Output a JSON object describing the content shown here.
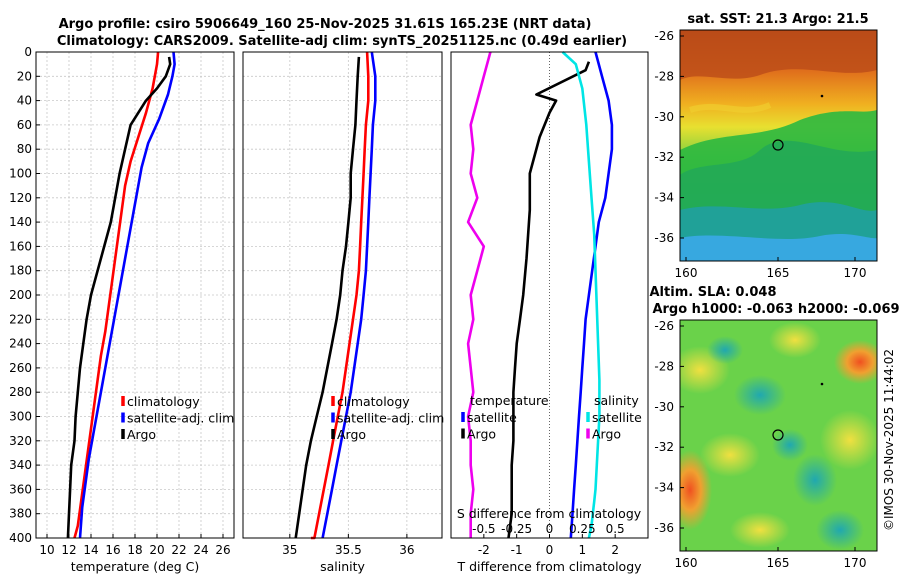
{
  "title_line1": "Argo profile: csiro 5906649_160 25-Nov-2025 31.61S 165.23E (NRT data)",
  "title_line2": "Climatology: CARS2009. Satellite-adj clim: synTS_20251125.nc (0.49d earlier)",
  "copyright": "©IMOS 30-Nov-2025 11:44:02",
  "chart_data": [
    {
      "type": "line",
      "name": "temperature",
      "xlabel": "temperature (deg C)",
      "xlim": [
        9,
        27
      ],
      "xticks": [
        "10",
        "12",
        "14",
        "16",
        "18",
        "20",
        "22",
        "24",
        "26"
      ],
      "ylim": [
        400,
        0
      ],
      "yticks": [
        "0",
        "20",
        "40",
        "60",
        "80",
        "100",
        "120",
        "140",
        "160",
        "180",
        "200",
        "220",
        "240",
        "260",
        "280",
        "300",
        "320",
        "340",
        "360",
        "380",
        "400"
      ],
      "grid": true,
      "legend": [
        "climatology",
        "satellite-adj. clim",
        "Argo"
      ],
      "legend_position": "lower-right",
      "series": [
        {
          "name": "climatology",
          "color": "#ff0000",
          "x": [
            20.1,
            20.0,
            19.6,
            19.0,
            18.3,
            17.6,
            17.1,
            16.8,
            16.5,
            16.2,
            15.9,
            15.6,
            15.3,
            14.9,
            14.6,
            14.3,
            14.0,
            13.7,
            13.4,
            13.1,
            12.8,
            12.5
          ],
          "y": [
            0,
            10,
            30,
            50,
            70,
            90,
            110,
            130,
            150,
            170,
            190,
            210,
            230,
            250,
            270,
            290,
            310,
            330,
            350,
            370,
            390,
            400
          ]
        },
        {
          "name": "satellite-adj. clim",
          "color": "#0000ff",
          "x": [
            21.5,
            21.6,
            21.4,
            21.0,
            20.2,
            19.2,
            18.6,
            18.2,
            17.8,
            17.4,
            17.0,
            16.6,
            16.2,
            15.8,
            15.4,
            15.0,
            14.6,
            14.2,
            13.8,
            13.5,
            13.2,
            13.0
          ],
          "y": [
            0,
            10,
            20,
            35,
            55,
            75,
            95,
            115,
            135,
            155,
            175,
            195,
            215,
            235,
            255,
            275,
            295,
            315,
            335,
            355,
            375,
            400
          ]
        },
        {
          "name": "Argo",
          "color": "#000000",
          "x": [
            21.1,
            21.2,
            20.8,
            20.0,
            19.0,
            17.6,
            17.1,
            16.6,
            16.2,
            15.8,
            15.2,
            14.6,
            14.0,
            13.6,
            13.3,
            13.0,
            12.8,
            12.6,
            12.5,
            12.2,
            12.1,
            12.0,
            11.9
          ],
          "y": [
            4,
            10,
            20,
            30,
            40,
            60,
            80,
            100,
            120,
            140,
            160,
            180,
            200,
            220,
            240,
            260,
            280,
            300,
            320,
            340,
            360,
            380,
            400
          ]
        }
      ]
    },
    {
      "type": "line",
      "name": "salinity",
      "xlabel": "salinity",
      "xlim": [
        34.6,
        36.3
      ],
      "xticks": [
        "35",
        "35.5",
        "36"
      ],
      "ylim": [
        400,
        0
      ],
      "grid": true,
      "legend": [
        "climatology",
        "satellite-adj. clim",
        "Argo"
      ],
      "legend_position": "lower-right",
      "series": [
        {
          "name": "climatology",
          "color": "#ff0000",
          "x": [
            35.66,
            35.67,
            35.67,
            35.65,
            35.64,
            35.63,
            35.62,
            35.61,
            35.6,
            35.59,
            35.57,
            35.54,
            35.51,
            35.48,
            35.45,
            35.41,
            35.37,
            35.33,
            35.29,
            35.25,
            35.21,
            35.18
          ],
          "y": [
            0,
            20,
            40,
            60,
            80,
            100,
            120,
            140,
            160,
            180,
            200,
            220,
            240,
            260,
            280,
            300,
            320,
            340,
            360,
            380,
            400,
            400
          ]
        },
        {
          "name": "satellite-adj. clim",
          "color": "#0000ff",
          "x": [
            35.7,
            35.73,
            35.73,
            35.71,
            35.7,
            35.69,
            35.68,
            35.67,
            35.66,
            35.65,
            35.63,
            35.61,
            35.58,
            35.55,
            35.52,
            35.48,
            35.44,
            35.4,
            35.36,
            35.32,
            35.28
          ],
          "y": [
            0,
            20,
            40,
            60,
            80,
            100,
            120,
            140,
            160,
            180,
            200,
            220,
            240,
            260,
            280,
            300,
            320,
            340,
            360,
            380,
            400
          ]
        },
        {
          "name": "Argo",
          "color": "#000000",
          "x": [
            35.59,
            35.58,
            35.57,
            35.56,
            35.54,
            35.52,
            35.52,
            35.5,
            35.48,
            35.45,
            35.43,
            35.4,
            35.36,
            35.32,
            35.28,
            35.23,
            35.18,
            35.14,
            35.11,
            35.08,
            35.05
          ],
          "y": [
            4,
            20,
            40,
            60,
            80,
            100,
            120,
            140,
            160,
            180,
            200,
            220,
            240,
            260,
            280,
            300,
            320,
            340,
            360,
            380,
            400
          ]
        }
      ]
    },
    {
      "type": "line",
      "name": "difference from climatology",
      "xlabel": "T difference from climatology",
      "xlabel2": "S difference from climatology",
      "xlim": [
        -3,
        3
      ],
      "xticks": [
        "-2",
        "-1",
        "0",
        "1",
        "2"
      ],
      "xticks2": [
        "-0.5",
        "-0.25",
        "0",
        "0.25",
        "0.5"
      ],
      "ylim": [
        400,
        0
      ],
      "grid": false,
      "legend_temperature_title": "temperature",
      "legend_salinity_title": "salinity",
      "legend_temperature": [
        "satellite",
        "Argo"
      ],
      "legend_salinity": [
        "satellite",
        "Argo"
      ],
      "series": [
        {
          "name": "temperature satellite",
          "color": "#0000ff",
          "x": [
            1.4,
            1.6,
            1.8,
            1.9,
            1.9,
            1.8,
            1.7,
            1.5,
            1.4,
            1.3,
            1.2,
            1.1,
            1.05,
            1.0,
            0.95,
            0.9,
            0.85,
            0.8,
            0.75,
            0.7,
            0.65
          ],
          "y": [
            0,
            20,
            40,
            60,
            80,
            100,
            120,
            140,
            160,
            180,
            200,
            220,
            240,
            260,
            280,
            300,
            320,
            340,
            360,
            380,
            400
          ]
        },
        {
          "name": "temperature Argo",
          "color": "#000000",
          "x": [
            1.2,
            1.1,
            -0.4,
            0.2,
            0.0,
            -0.3,
            -0.6,
            -0.6,
            -0.7,
            -0.8,
            -0.9,
            -1.0,
            -1.05,
            -1.1,
            -1.1,
            -1.1,
            -1.15,
            -1.15,
            -1.15,
            -1.2,
            -1.25
          ],
          "y": [
            8,
            15,
            35,
            40,
            50,
            70,
            100,
            130,
            170,
            200,
            220,
            240,
            260,
            280,
            300,
            320,
            340,
            360,
            380,
            390,
            400
          ]
        },
        {
          "name": "salinity satellite",
          "color": "#00e5e5",
          "x": [
            0.1,
            0.2,
            0.25,
            0.28,
            0.3,
            0.32,
            0.34,
            0.35,
            0.36,
            0.37,
            0.38,
            0.38,
            0.37,
            0.36,
            0.35,
            0.34,
            0.33,
            0.32,
            0.31,
            0.3
          ],
          "y": [
            0,
            10,
            30,
            60,
            90,
            120,
            150,
            180,
            210,
            240,
            270,
            300,
            320,
            340,
            360,
            370,
            380,
            390,
            395,
            400
          ]
        },
        {
          "name": "salinity Argo",
          "color": "#ee00ee",
          "x": [
            -0.45,
            -0.5,
            -0.55,
            -0.6,
            -0.58,
            -0.6,
            -0.55,
            -0.62,
            -0.5,
            -0.55,
            -0.6,
            -0.58,
            -0.62,
            -0.6,
            -0.58,
            -0.62,
            -0.6,
            -0.6,
            -0.58,
            -0.6,
            -0.6
          ],
          "y": [
            0,
            20,
            40,
            60,
            80,
            100,
            120,
            140,
            160,
            180,
            200,
            220,
            240,
            260,
            280,
            300,
            320,
            340,
            360,
            380,
            400
          ]
        }
      ]
    },
    {
      "type": "heatmap",
      "name": "sst_map",
      "title": "sat. SST: 21.3 Argo: 21.5",
      "xticks": [
        "160",
        "165",
        "170"
      ],
      "yticks": [
        "-26",
        "-28",
        "-30",
        "-32",
        "-34",
        "-36"
      ],
      "marker": {
        "lon": 165.23,
        "lat": -31.61
      }
    },
    {
      "type": "heatmap",
      "name": "sla_map",
      "title_line1": "Altim. SLA: 0.048",
      "title_line2": "Argo h1000: -0.063 h2000: -0.069",
      "xticks": [
        "160",
        "165",
        "170"
      ],
      "yticks": [
        "-26",
        "-28",
        "-30",
        "-32",
        "-34",
        "-36"
      ],
      "marker": {
        "lon": 165.23,
        "lat": -31.61
      }
    }
  ]
}
